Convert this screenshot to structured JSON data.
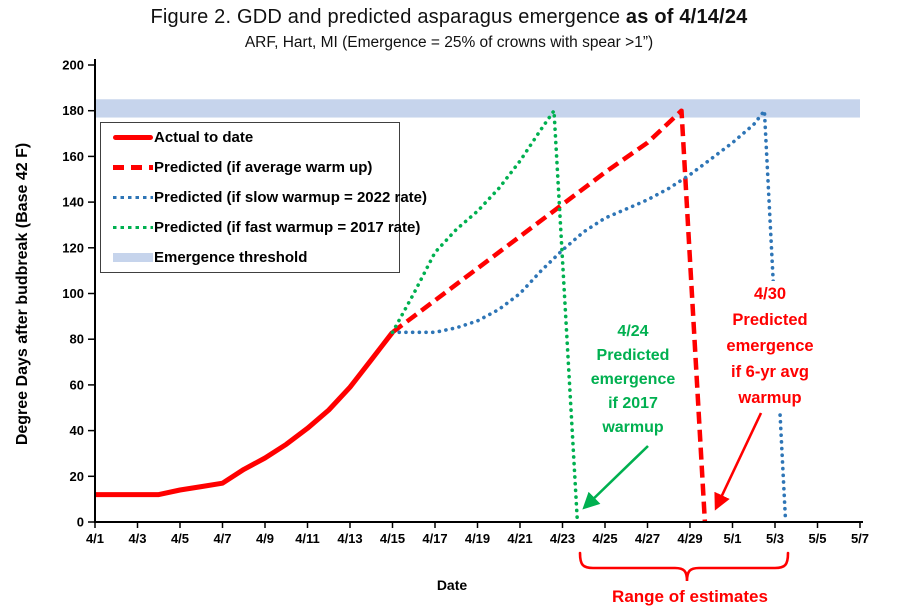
{
  "title": {
    "regular": "Figure 2.  GDD and predicted asparagus emergence",
    "bold": "as of 4/14/24"
  },
  "subtitle": "ARF, Hart, MI (Emergence = 25% of crowns with spear >1”)",
  "axes": {
    "y_label": "Degree Days after budbreak (Base 42 F)",
    "x_label": "Date"
  },
  "colors": {
    "red": "#FF0000",
    "green": "#00B050",
    "blue": "#2E75B6",
    "threshold_band": "#C6D4EC",
    "axis": "#000000"
  },
  "legend": {
    "items": [
      {
        "label": "Actual to date",
        "color": "#FF0000",
        "style": "solid"
      },
      {
        "label": "Predicted (if average warm up)",
        "color": "#FF0000",
        "style": "dashed"
      },
      {
        "label": "Predicted (if slow warmup = 2022 rate)",
        "color": "#2E75B6",
        "style": "dotted"
      },
      {
        "label": "Predicted (if fast warmup = 2017 rate)",
        "color": "#00B050",
        "style": "dotted"
      },
      {
        "label": "Emergence threshold",
        "color": "#C6D4EC",
        "style": "band"
      }
    ]
  },
  "annotations": {
    "green": {
      "text": "4/24\nPredicted\nemergence\nif 2017\nwarmup",
      "color": "#00B050",
      "emergence_date": "4/24"
    },
    "red": {
      "text": "4/30\nPredicted\nemergence\nif 6-yr avg\nwarmup",
      "color": "#FF0000",
      "emergence_date": "4/30"
    },
    "range_label": "Range of estimates"
  },
  "chart_data": {
    "type": "line",
    "title": "Figure 2. GDD and predicted asparagus emergence as of 4/14/24",
    "subtitle": "ARF, Hart, MI (Emergence = 25% of crowns with spear >1”)",
    "xlabel": "Date",
    "ylabel": "Degree Days after budbreak (Base 42 F)",
    "ylim": [
      0,
      200
    ],
    "grid": false,
    "legend_position": "upper-left-inside",
    "x_encoding": "day index: 4/1 = 1 ... 4/30 = 30, 5/1 = 31 ... 5/7 = 37",
    "x_ticks": {
      "labels": [
        "4/1",
        "4/3",
        "4/5",
        "4/7",
        "4/9",
        "4/11",
        "4/13",
        "4/15",
        "4/17",
        "4/19",
        "4/21",
        "4/23",
        "4/25",
        "4/27",
        "4/29",
        "5/1",
        "5/3",
        "5/5",
        "5/7"
      ],
      "days": [
        1,
        3,
        5,
        7,
        9,
        11,
        13,
        15,
        17,
        19,
        21,
        23,
        25,
        27,
        29,
        31,
        33,
        35,
        37
      ]
    },
    "y_ticks": [
      0,
      20,
      40,
      60,
      80,
      100,
      120,
      140,
      160,
      180,
      200
    ],
    "emergence_threshold": 180,
    "threshold_band": {
      "label": "Emergence threshold",
      "value_range": [
        177,
        185
      ],
      "color": "#C6D4EC"
    },
    "series": [
      {
        "key": "actual",
        "name": "Actual to date",
        "color": "#FF0000",
        "style": "solid",
        "points": [
          [
            1,
            12
          ],
          [
            2,
            12
          ],
          [
            3,
            12
          ],
          [
            4,
            12
          ],
          [
            5,
            14
          ],
          [
            6,
            15.5
          ],
          [
            7,
            17
          ],
          [
            8,
            23
          ],
          [
            9,
            28
          ],
          [
            10,
            34
          ],
          [
            11,
            41
          ],
          [
            12,
            49
          ],
          [
            13,
            59
          ],
          [
            14,
            71
          ],
          [
            15,
            83
          ]
        ]
      },
      {
        "key": "predicted-average",
        "name": "Predicted (if average warm up)",
        "color": "#FF0000",
        "style": "dashed",
        "emergence_date": "4/30",
        "points": [
          [
            15,
            83
          ],
          [
            17,
            97
          ],
          [
            19,
            111
          ],
          [
            21,
            125
          ],
          [
            23,
            139
          ],
          [
            25,
            153
          ],
          [
            27,
            166
          ],
          [
            28.6,
            180
          ],
          [
            29.7,
            0
          ]
        ]
      },
      {
        "key": "predicted-slow-2022",
        "name": "Predicted (if slow warmup = 2022 rate)",
        "color": "#2E75B6",
        "style": "dotted",
        "points": [
          [
            15,
            83
          ],
          [
            16,
            83
          ],
          [
            17,
            83
          ],
          [
            18,
            85
          ],
          [
            19,
            88
          ],
          [
            20,
            93
          ],
          [
            21,
            100
          ],
          [
            22,
            110
          ],
          [
            23,
            119
          ],
          [
            24,
            127
          ],
          [
            25,
            133
          ],
          [
            26,
            137
          ],
          [
            27,
            141
          ],
          [
            28,
            146
          ],
          [
            29,
            152
          ],
          [
            30,
            159
          ],
          [
            31,
            166
          ],
          [
            32,
            174
          ],
          [
            32.5,
            180
          ],
          [
            33.5,
            0
          ]
        ]
      },
      {
        "key": "predicted-fast-2017",
        "name": "Predicted (if fast warmup = 2017 rate)",
        "color": "#00B050",
        "style": "dotted",
        "emergence_date": "4/24",
        "points": [
          [
            15,
            83
          ],
          [
            16,
            100
          ],
          [
            17,
            118
          ],
          [
            18,
            128
          ],
          [
            19,
            136
          ],
          [
            20,
            146
          ],
          [
            21,
            158
          ],
          [
            22,
            172
          ],
          [
            22.6,
            180
          ],
          [
            23.7,
            0
          ]
        ]
      }
    ]
  }
}
